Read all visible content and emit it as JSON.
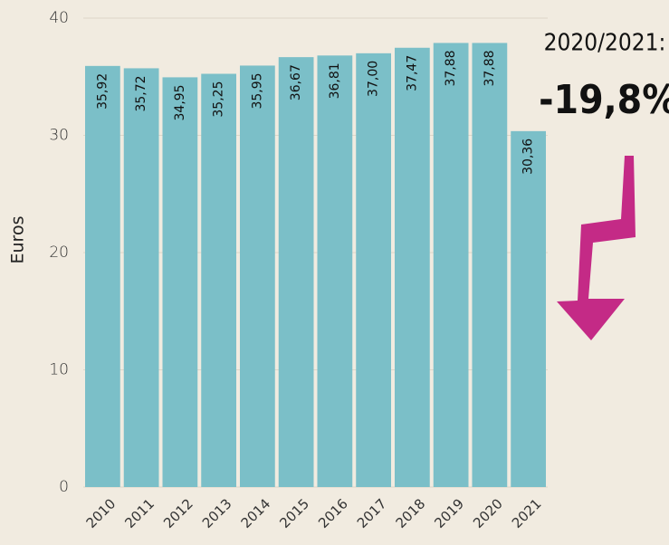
{
  "chart_data": {
    "type": "bar",
    "y_label": "Euros",
    "categories": [
      "2010",
      "2011",
      "2012",
      "2013",
      "2014",
      "2015",
      "2016",
      "2017",
      "2018",
      "2019",
      "2020",
      "2021"
    ],
    "values": [
      35.92,
      35.72,
      34.95,
      35.25,
      35.95,
      36.67,
      36.81,
      37.0,
      37.47,
      37.88,
      37.88,
      30.36
    ],
    "value_labels": [
      "35,92",
      "35,72",
      "34,95",
      "35,25",
      "35,95",
      "36,67",
      "36,81",
      "37,00",
      "37,47",
      "37,88",
      "37,88",
      "30,36"
    ],
    "color": "#7bbfc8",
    "ylim": [
      0,
      40
    ],
    "yticks": [
      0,
      10,
      20,
      30,
      40
    ],
    "grid": true,
    "annotations": [
      "2020/2021:",
      "-19,8%"
    ]
  }
}
